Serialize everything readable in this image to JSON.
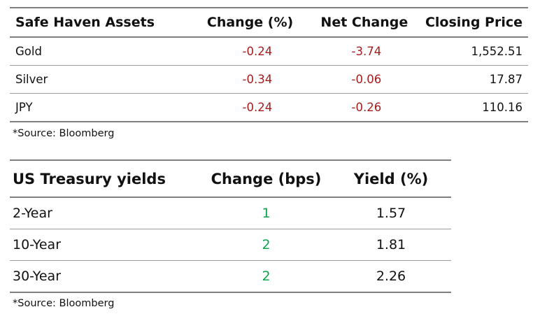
{
  "safe_haven": {
    "headers": [
      "Safe Haven Assets",
      "Change (%)",
      "Net Change",
      "Closing Price"
    ],
    "rows": [
      {
        "asset": "Gold",
        "change_pct": "-0.24",
        "net_change": "-3.74",
        "closing_price": "1,552.51"
      },
      {
        "asset": "Silver",
        "change_pct": "-0.34",
        "net_change": "-0.06",
        "closing_price": "17.87"
      },
      {
        "asset": "JPY",
        "change_pct": "-0.24",
        "net_change": "-0.26",
        "closing_price": "110.16"
      }
    ],
    "source": "*Source: Bloomberg"
  },
  "treasury": {
    "headers": [
      "US Treasury yields",
      "Change (bps)",
      "Yield (%)"
    ],
    "rows": [
      {
        "tenor": "2-Year",
        "change_bps": "1",
        "yield_pct": "1.57"
      },
      {
        "tenor": "10-Year",
        "change_bps": "2",
        "yield_pct": "1.81"
      },
      {
        "tenor": "30-Year",
        "change_bps": "2",
        "yield_pct": "2.26"
      }
    ],
    "source": "*Source: Bloomberg"
  },
  "colors": {
    "negative": "#a61c1c",
    "positive": "#11a34a",
    "rule": "#7f7f7f"
  }
}
